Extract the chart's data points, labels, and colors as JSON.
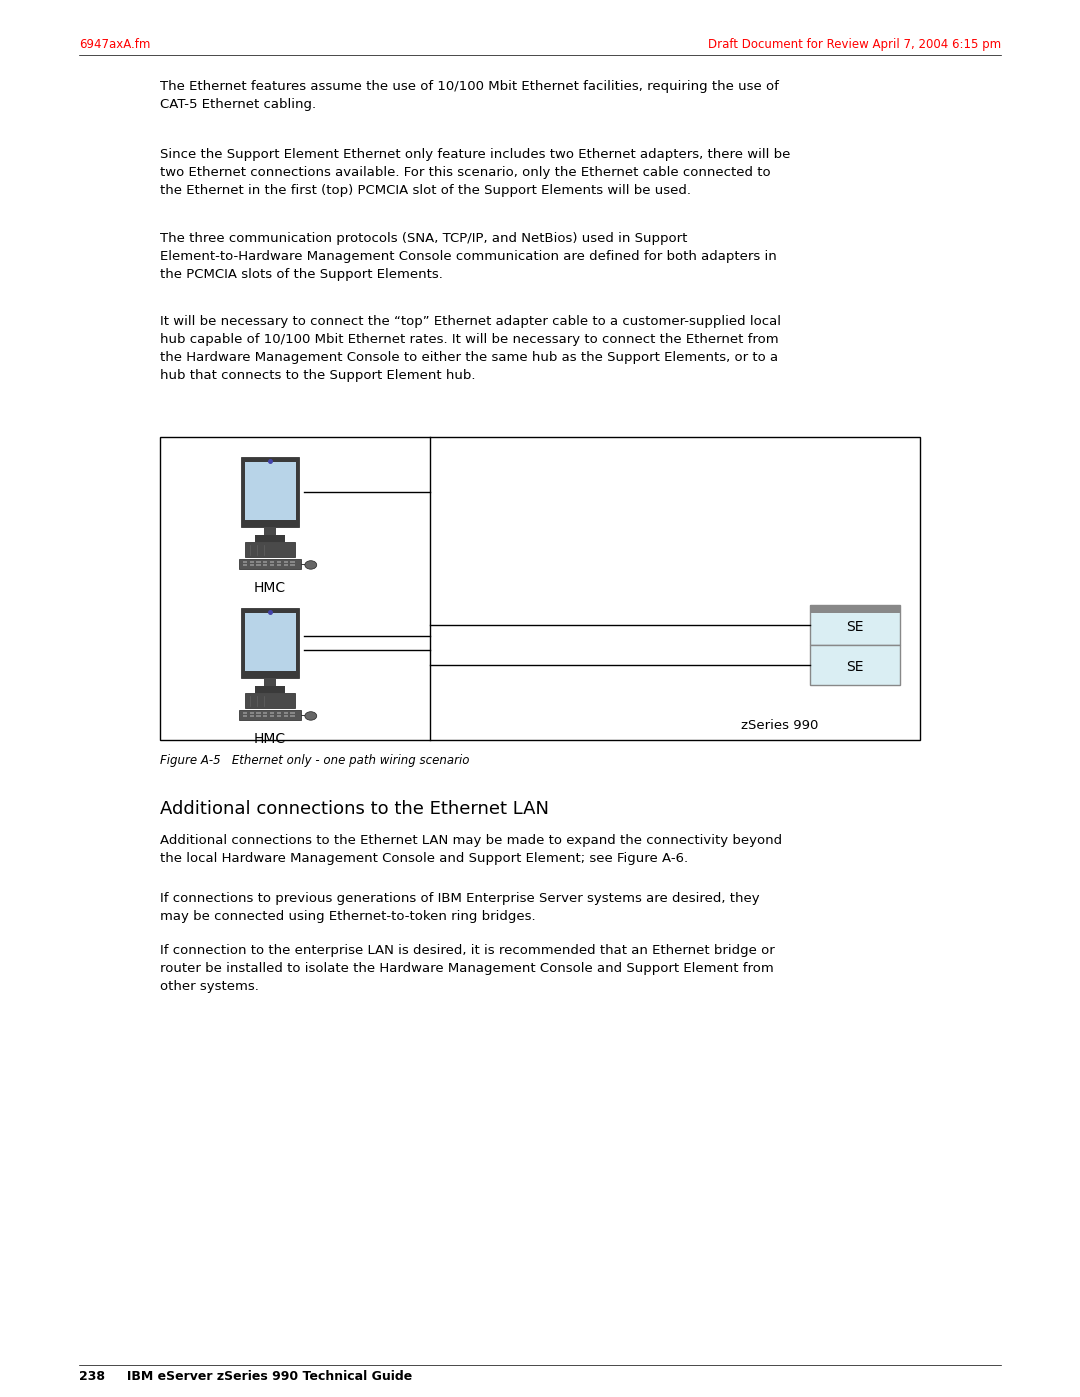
{
  "page_width": 10.8,
  "page_height": 13.97,
  "bg_color": "#ffffff",
  "header_left": "6947axA.fm",
  "header_right": "Draft Document for Review April 7, 2004 6:15 pm",
  "header_color": "#ff0000",
  "header_fontsize": 8.5,
  "footer_text": "238     IBM eServer zSeries 990 Technical Guide",
  "footer_fontsize": 9,
  "body_text_1": "The Ethernet features assume the use of 10/100 Mbit Ethernet facilities, requiring the use of\nCAT-5 Ethernet cabling.",
  "body_text_2": "Since the Support Element Ethernet only feature includes two Ethernet adapters, there will be\ntwo Ethernet connections available. For this scenario, only the Ethernet cable connected to\nthe Ethernet in the first (top) PCMCIA slot of the Support Elements will be used.",
  "body_text_3": "The three communication protocols (SNA, TCP/IP, and NetBios) used in Support\nElement-to-Hardware Management Console communication are defined for both adapters in\nthe PCMCIA slots of the Support Elements.",
  "body_text_4": "It will be necessary to connect the “top” Ethernet adapter cable to a customer-supplied local\nhub capable of 10/100 Mbit Ethernet rates. It will be necessary to connect the Ethernet from\nthe Hardware Management Console to either the same hub as the Support Elements, or to a\nhub that connects to the Support Element hub.",
  "section_title": "Additional connections to the Ethernet LAN",
  "section_text_1": "Additional connections to the Ethernet LAN may be made to expand the connectivity beyond\nthe local Hardware Management Console and Support Element; see Figure A-6.",
  "section_text_2": "If connections to previous generations of IBM Enterprise Server systems are desired, they\nmay be connected using Ethernet-to-token ring bridges.",
  "section_text_3": "If connection to the enterprise LAN is desired, it is recommended that an Ethernet bridge or\nrouter be installed to isolate the Hardware Management Console and Support Element from\nother systems.",
  "figure_caption": "Figure A-5   Ethernet only - one path wiring scenario",
  "body_fontsize": 9.5,
  "section_title_fontsize": 13,
  "hmc_label": "HMC",
  "se_label": "SE",
  "zseries_label": "zSeries 990",
  "se_box_color": "#daeef3"
}
